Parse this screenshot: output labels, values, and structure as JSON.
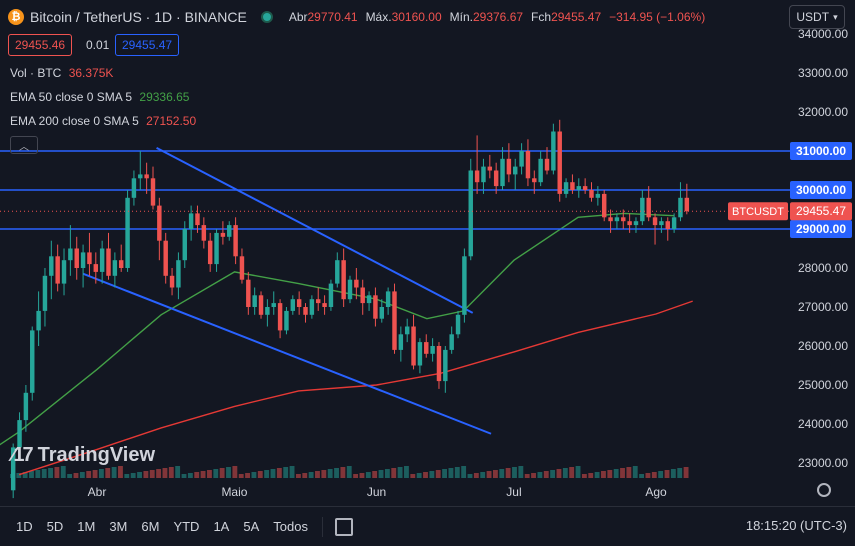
{
  "header": {
    "symbol_title": "Bitcoin / TetherUS · 1D · BINANCE",
    "ohlc": [
      {
        "label": "Abr",
        "value": "29770.41"
      },
      {
        "label": "Máx.",
        "value": "30160.00"
      },
      {
        "label": "Mín.",
        "value": "29376.67"
      },
      {
        "label": "Fch",
        "value": "29455.47"
      },
      {
        "label": "",
        "value": "−314.95 (−1.06%)"
      }
    ],
    "currency": "USDT",
    "sell_price": "29455.46",
    "spread": "0.01",
    "buy_price": "29455.47"
  },
  "indicators": {
    "volume": {
      "label": "Vol · BTC",
      "value": "36.375K"
    },
    "ema50": {
      "label": "EMA 50 close 0 SMA 5",
      "value": "29336.65"
    },
    "ema200": {
      "label": "EMA 200 close 0 SMA 5",
      "value": "27152.50"
    }
  },
  "colors": {
    "up": "#26a69a",
    "down": "#ef5350",
    "hline": "#2962ff",
    "ema50": "#43a047",
    "ema200": "#e53935",
    "bg": "#131722"
  },
  "bottom": {
    "ranges": [
      "1D",
      "5D",
      "1M",
      "3M",
      "6M",
      "YTD",
      "1A",
      "5A",
      "Todos"
    ],
    "clock": "18:15:20 (UTC-3)"
  },
  "watermark": "TradingView",
  "chart_data": {
    "type": "candlestick",
    "symbol": "BTCUSDT",
    "last_price": 29455.47,
    "last_price_label": "29455.47",
    "ylim": [
      22700,
      34500
    ],
    "yticks": [
      23000,
      24000,
      25000,
      26000,
      27000,
      28000,
      29000,
      30000,
      31000,
      32000,
      33000,
      34000
    ],
    "ytick_labels": [
      "23000.00",
      "24000.00",
      "25000.00",
      "26000.00",
      "27000.00",
      "28000.00",
      "29000.00",
      "30000.00",
      "31000.00",
      "32000.00",
      "33000.00",
      "34000.00"
    ],
    "xticks": [
      "Abr",
      "Maio",
      "Jun",
      "Jul",
      "Ago"
    ],
    "horizontal_lines": [
      {
        "price": 31000,
        "label": "31000.00"
      },
      {
        "price": 30000,
        "label": "30000.00"
      },
      {
        "price": 29000,
        "label": "29000.00"
      }
    ],
    "channel_lines": [
      {
        "from": [
          "2023-04-14",
          31080
        ],
        "to": [
          "2023-06-22",
          26850
        ]
      },
      {
        "from": [
          "2023-03-29",
          27850
        ],
        "to": [
          "2023-06-26",
          23750
        ]
      }
    ],
    "ema50_points": [
      [
        "2023-03-01",
        22700
      ],
      [
        "2023-03-15",
        23800
      ],
      [
        "2023-04-01",
        25400
      ],
      [
        "2023-04-15",
        26800
      ],
      [
        "2023-05-01",
        27900
      ],
      [
        "2023-05-15",
        27600
      ],
      [
        "2023-06-01",
        27200
      ],
      [
        "2023-06-12",
        26700
      ],
      [
        "2023-06-20",
        26900
      ],
      [
        "2023-07-01",
        28200
      ],
      [
        "2023-07-15",
        29300
      ],
      [
        "2023-07-25",
        29400
      ],
      [
        "2023-08-05",
        29340
      ]
    ],
    "ema200_points": [
      [
        "2023-03-15",
        22700
      ],
      [
        "2023-04-01",
        23350
      ],
      [
        "2023-04-15",
        23900
      ],
      [
        "2023-05-01",
        24450
      ],
      [
        "2023-05-15",
        24850
      ],
      [
        "2023-06-01",
        25000
      ],
      [
        "2023-06-15",
        25300
      ],
      [
        "2023-07-01",
        25850
      ],
      [
        "2023-07-15",
        26350
      ],
      [
        "2023-08-01",
        26820
      ],
      [
        "2023-08-09",
        27150
      ]
    ],
    "candles_ohlc": [
      [
        22300,
        23500,
        22100,
        23400
      ],
      [
        23400,
        24300,
        23200,
        24100
      ],
      [
        24100,
        25000,
        23800,
        24800
      ],
      [
        24800,
        26500,
        24600,
        26400
      ],
      [
        26400,
        27400,
        26000,
        26900
      ],
      [
        26900,
        28000,
        26500,
        27800
      ],
      [
        27800,
        28700,
        27200,
        28300
      ],
      [
        28300,
        28600,
        27400,
        27600
      ],
      [
        27600,
        28500,
        27300,
        28200
      ],
      [
        28200,
        29100,
        27800,
        28500
      ],
      [
        28500,
        28800,
        27700,
        28000
      ],
      [
        28000,
        28600,
        27500,
        28400
      ],
      [
        28400,
        28900,
        27800,
        28100
      ],
      [
        28100,
        28400,
        27600,
        27900
      ],
      [
        27900,
        28700,
        27600,
        28500
      ],
      [
        28500,
        28900,
        27700,
        27800
      ],
      [
        27800,
        28400,
        27500,
        28200
      ],
      [
        28200,
        28600,
        27900,
        28000
      ],
      [
        28000,
        30000,
        27900,
        29800
      ],
      [
        29800,
        30500,
        29600,
        30300
      ],
      [
        30300,
        31000,
        30000,
        30400
      ],
      [
        30400,
        30700,
        29900,
        30300
      ],
      [
        30300,
        30600,
        29500,
        29600
      ],
      [
        29600,
        29800,
        28200,
        28700
      ],
      [
        28700,
        28900,
        27600,
        27800
      ],
      [
        27800,
        28000,
        27300,
        27500
      ],
      [
        27500,
        28400,
        27200,
        28200
      ],
      [
        28200,
        29200,
        28000,
        29000
      ],
      [
        29000,
        29600,
        28700,
        29400
      ],
      [
        29400,
        29600,
        28900,
        29100
      ],
      [
        29100,
        29300,
        28500,
        28700
      ],
      [
        28700,
        28900,
        27900,
        28100
      ],
      [
        28100,
        29000,
        27900,
        28900
      ],
      [
        28900,
        29200,
        28600,
        28800
      ],
      [
        28800,
        29200,
        28700,
        29100
      ],
      [
        29100,
        29300,
        28100,
        28300
      ],
      [
        28300,
        28500,
        27600,
        27700
      ],
      [
        27700,
        27900,
        26800,
        27000
      ],
      [
        27000,
        27500,
        26800,
        27300
      ],
      [
        27300,
        27400,
        26700,
        26800
      ],
      [
        26800,
        27200,
        26500,
        27000
      ],
      [
        27000,
        27400,
        26800,
        27100
      ],
      [
        27100,
        27200,
        26200,
        26400
      ],
      [
        26400,
        27000,
        26300,
        26900
      ],
      [
        26900,
        27300,
        26800,
        27200
      ],
      [
        27200,
        27400,
        26800,
        27000
      ],
      [
        27000,
        27100,
        26600,
        26800
      ],
      [
        26800,
        27300,
        26700,
        27200
      ],
      [
        27200,
        27500,
        26900,
        27100
      ],
      [
        27100,
        27300,
        26800,
        27000
      ],
      [
        27000,
        27700,
        26900,
        27600
      ],
      [
        27600,
        28400,
        27500,
        28200
      ],
      [
        28200,
        28500,
        27000,
        27200
      ],
      [
        27200,
        27800,
        27100,
        27700
      ],
      [
        27700,
        28000,
        27200,
        27500
      ],
      [
        27500,
        27700,
        26800,
        27100
      ],
      [
        27100,
        27400,
        26900,
        27300
      ],
      [
        27300,
        27500,
        26500,
        26700
      ],
      [
        26700,
        27200,
        26600,
        27000
      ],
      [
        27000,
        27500,
        26800,
        27400
      ],
      [
        27400,
        27600,
        25800,
        25900
      ],
      [
        25900,
        26500,
        25600,
        26300
      ],
      [
        26300,
        26700,
        26100,
        26500
      ],
      [
        26500,
        26800,
        25400,
        25500
      ],
      [
        25500,
        26200,
        25300,
        26100
      ],
      [
        26100,
        26300,
        25700,
        25800
      ],
      [
        25800,
        26200,
        25600,
        26000
      ],
      [
        26000,
        26100,
        24900,
        25100
      ],
      [
        25100,
        26000,
        24800,
        25900
      ],
      [
        25900,
        26500,
        25800,
        26300
      ],
      [
        26300,
        26900,
        26200,
        26800
      ],
      [
        26800,
        28500,
        26600,
        28300
      ],
      [
        28300,
        30800,
        28200,
        30500
      ],
      [
        30500,
        31400,
        29900,
        30200
      ],
      [
        30200,
        30800,
        29900,
        30600
      ],
      [
        30600,
        30900,
        30300,
        30500
      ],
      [
        30500,
        30700,
        29900,
        30100
      ],
      [
        30100,
        31100,
        30000,
        30800
      ],
      [
        30800,
        31200,
        30200,
        30400
      ],
      [
        30400,
        30800,
        30000,
        30600
      ],
      [
        30600,
        31200,
        30400,
        31000
      ],
      [
        31000,
        31300,
        30100,
        30300
      ],
      [
        30300,
        30500,
        29900,
        30200
      ],
      [
        30200,
        31000,
        30100,
        30800
      ],
      [
        30800,
        31100,
        30400,
        30500
      ],
      [
        30500,
        31700,
        30400,
        31500
      ],
      [
        31500,
        31800,
        29700,
        29900
      ],
      [
        29900,
        30300,
        29800,
        30200
      ],
      [
        30200,
        30400,
        29900,
        30000
      ],
      [
        30000,
        30300,
        29800,
        30100
      ],
      [
        30100,
        30300,
        29900,
        30000
      ],
      [
        30000,
        30200,
        29700,
        29800
      ],
      [
        29800,
        30100,
        29600,
        29900
      ],
      [
        29900,
        30000,
        29200,
        29300
      ],
      [
        29300,
        29500,
        28900,
        29200
      ],
      [
        29200,
        29400,
        29000,
        29300
      ],
      [
        29300,
        29500,
        29000,
        29200
      ],
      [
        29200,
        29400,
        28900,
        29100
      ],
      [
        29100,
        29300,
        28900,
        29200
      ],
      [
        29200,
        30000,
        29100,
        29800
      ],
      [
        29800,
        30100,
        29200,
        29300
      ],
      [
        29300,
        29400,
        28600,
        29100
      ],
      [
        29100,
        29300,
        28900,
        29200
      ],
      [
        29200,
        29300,
        28700,
        29000
      ],
      [
        29000,
        29400,
        28900,
        29300
      ],
      [
        29300,
        30200,
        29200,
        29800
      ],
      [
        29800,
        30160,
        29377,
        29455
      ]
    ],
    "volume_note": "volume bars along bottom"
  }
}
